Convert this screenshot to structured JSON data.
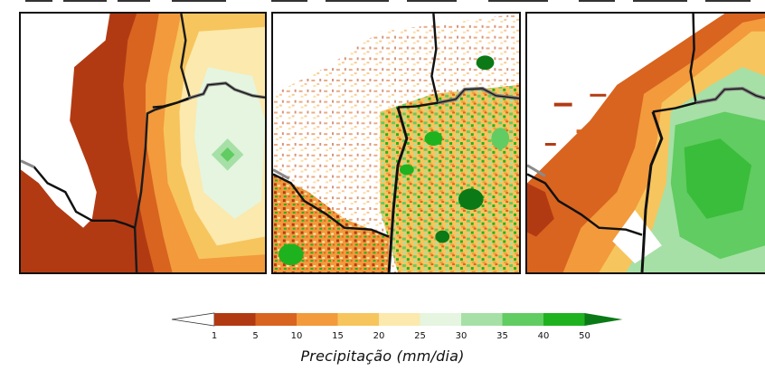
{
  "colorbar": {
    "title": "Precipitação (mm/dia)",
    "ticks": [
      "1",
      "5",
      "10",
      "15",
      "20",
      "25",
      "30",
      "35",
      "40",
      "50"
    ],
    "colors": {
      "below_1": "#ffffff",
      "1_5": "#b23a13",
      "5_10": "#d8641f",
      "10_15": "#f29a3c",
      "15_20": "#f7c55d",
      "20_25": "#fbe9ad",
      "25_30": "#e5f5e0",
      "30_35": "#a6e0a6",
      "35_40": "#61cc61",
      "40_50": "#1fb21f",
      "above_50": "#0b7a16"
    }
  },
  "panels": [
    {
      "name": "coarse-resolution-map"
    },
    {
      "name": "high-resolution-map"
    },
    {
      "name": "smoothed-high-resolution-map"
    }
  ]
}
